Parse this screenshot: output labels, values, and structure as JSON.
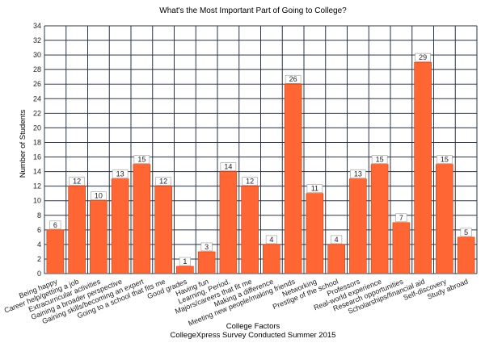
{
  "chart_data": {
    "type": "bar",
    "title": "What's the Most Important Part of Going to College?",
    "xlabel": "College Factors",
    "subtitle": "CollegeXpress Survey Conducted Summer 2015",
    "ylabel": "Number of Students",
    "ylim": [
      0,
      34
    ],
    "ytick_step": 2,
    "grid": true,
    "bar_color": "#ff6633",
    "grid_color": "#2a3646",
    "categories": [
      "Being happy",
      "Career help/getting a job",
      "Extracurricular activities",
      "Gaining a broader perspective",
      "Gaining skills/becoming an expert",
      "Going to a school that fits me",
      "Good grades",
      "Having fun",
      "Learning. Period.",
      "Majors/careers that fit me",
      "Making a difference",
      "Meeting new people/making friends",
      "Networking",
      "Prestige of the school",
      "Professors",
      "Real-world experience",
      "Research opportunities",
      "Scholarships/financial aid",
      "Self-discovery",
      "Study abroad"
    ],
    "values": [
      6,
      12,
      10,
      13,
      15,
      12,
      1,
      3,
      14,
      12,
      4,
      26,
      11,
      4,
      13,
      15,
      7,
      29,
      15,
      5
    ]
  }
}
